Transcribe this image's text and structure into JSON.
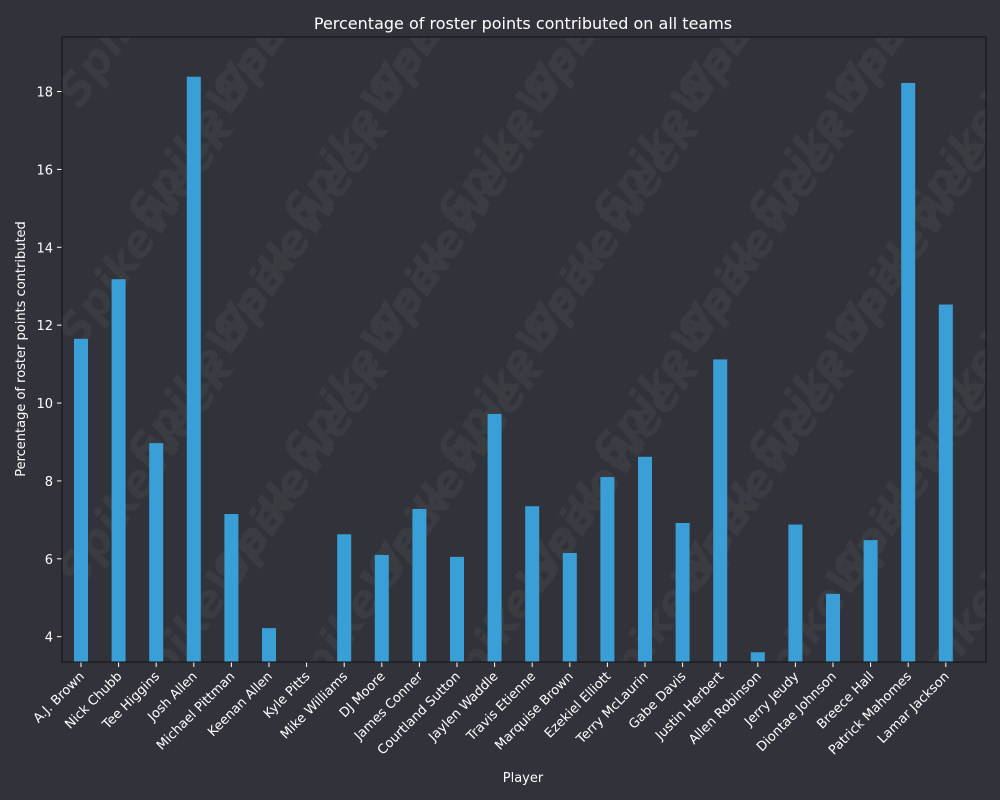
{
  "chart_data": {
    "type": "bar",
    "title": "Percentage of roster points contributed on all teams",
    "xlabel": "Player",
    "ylabel": "Percentage of roster points contributed",
    "categories": [
      "A.J. Brown",
      "Nick Chubb",
      "Tee Higgins",
      "Josh Allen",
      "Michael Pittman",
      "Keenan Allen",
      "Kyle Pitts",
      "Mike Williams",
      "DJ Moore",
      "James Conner",
      "Courtland Sutton",
      "Jaylen Waddle",
      "Travis Etienne",
      "Marquise Brown",
      "Ezekiel Elliott",
      "Terry McLaurin",
      "Gabe Davis",
      "Justin Herbert",
      "Allen Robinson",
      "Jerry Jeudy",
      "Diontae Johnson",
      "Breece Hall",
      "Patrick Mahomes",
      "Lamar Jackson"
    ],
    "values": [
      11.65,
      13.18,
      8.97,
      18.38,
      7.15,
      4.22,
      3.3,
      6.63,
      6.1,
      7.28,
      6.05,
      9.72,
      7.35,
      6.15,
      8.1,
      8.62,
      6.92,
      11.12,
      3.6,
      6.88,
      5.1,
      6.48,
      18.22,
      12.53
    ],
    "yticks": [
      4,
      6,
      8,
      10,
      12,
      14,
      16,
      18
    ],
    "ylim": [
      3.35,
      19.4
    ],
    "grid": false,
    "bar_color": "#3a9fd6",
    "background_color": "#32333a",
    "text_color": "#ffffff"
  },
  "watermark": {
    "text": "SpikeWeek"
  }
}
